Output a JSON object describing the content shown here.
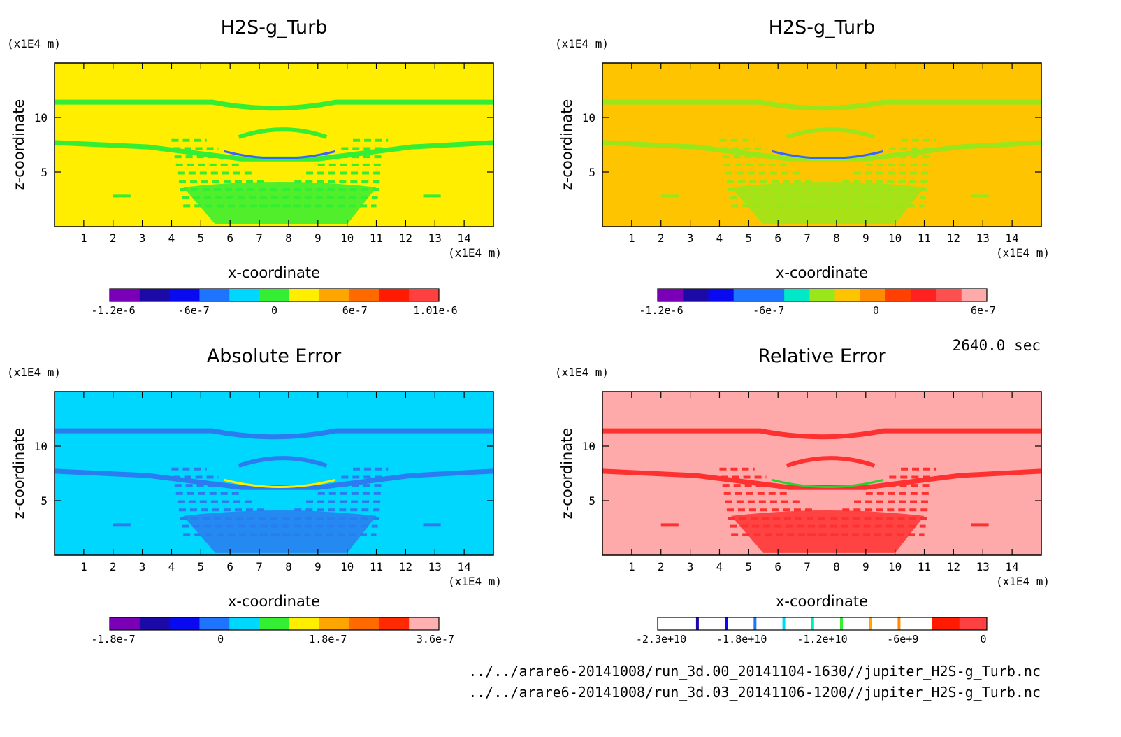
{
  "time_label": "2640.0 sec",
  "footer": {
    "file_1": "../../arare6-20141008/run_3d.00_20141104-1630//jupiter_H2S-g_Turb.nc",
    "file_2": "../../arare6-20141008/run_3d.03_20141106-1200//jupiter_H2S-g_Turb.nc"
  },
  "chart_data": [
    {
      "type": "heatmap",
      "title": "H2S-g_Turb",
      "xlabel": "x-coordinate",
      "ylabel": "z-coordinate",
      "x_unit": "(x1E4 m)",
      "y_unit": "(x1E4 m)",
      "xlim": [
        0,
        15
      ],
      "ylim": [
        0,
        15
      ],
      "xticks": [
        1,
        2,
        3,
        4,
        5,
        6,
        7,
        8,
        9,
        10,
        11,
        12,
        13,
        14
      ],
      "yticks": [
        5,
        10
      ],
      "background_color": "#ffee00",
      "feature_color": "#33ee33",
      "accent_color": "#3366ff",
      "colorbar": {
        "colors": [
          "#7a00b8",
          "#1c0aa6",
          "#0a0af0",
          "#1e74ff",
          "#00d7ff",
          "#33ee33",
          "#ffee00",
          "#ffa500",
          "#ff6a00",
          "#ff1a00",
          "#ff4040"
        ],
        "tick_labels": [
          "-1.2e-6",
          "-6e-7",
          "0",
          "6e-7",
          "1.01e-6"
        ]
      }
    },
    {
      "type": "heatmap",
      "title": "H2S-g_Turb",
      "xlabel": "x-coordinate",
      "ylabel": "z-coordinate",
      "x_unit": "(x1E4 m)",
      "y_unit": "(x1E4 m)",
      "xlim": [
        0,
        15
      ],
      "ylim": [
        0,
        15
      ],
      "xticks": [
        1,
        2,
        3,
        4,
        5,
        6,
        7,
        8,
        9,
        10,
        11,
        12,
        13,
        14
      ],
      "yticks": [
        5,
        10
      ],
      "background_color": "#ffc400",
      "feature_color": "#99e61a",
      "accent_color": "#3366ff",
      "colorbar": {
        "colors": [
          "#7a00b8",
          "#1c0aa6",
          "#0a0af0",
          "#1e74ff",
          "#1e74ff",
          "#00e8c8",
          "#99e61a",
          "#ffc400",
          "#ff8c00",
          "#ff4000",
          "#ff2020",
          "#ff5050",
          "#ffaaaa"
        ],
        "tick_labels": [
          "-1.2e-6",
          "-6e-7",
          "0",
          "6e-7"
        ]
      }
    },
    {
      "type": "heatmap",
      "title": "Absolute Error",
      "xlabel": "x-coordinate",
      "ylabel": "z-coordinate",
      "x_unit": "(x1E4 m)",
      "y_unit": "(x1E4 m)",
      "xlim": [
        0,
        15
      ],
      "ylim": [
        0,
        15
      ],
      "xticks": [
        1,
        2,
        3,
        4,
        5,
        6,
        7,
        8,
        9,
        10,
        11,
        12,
        13,
        14
      ],
      "yticks": [
        5,
        10
      ],
      "background_color": "#00d7ff",
      "feature_color": "#2a7cf0",
      "accent_color": "#ffee00",
      "colorbar": {
        "colors": [
          "#7a00b8",
          "#1c0aa6",
          "#0a0af0",
          "#1e74ff",
          "#00d7ff",
          "#33ee33",
          "#ffee00",
          "#ffa500",
          "#ff6a00",
          "#ff2a00",
          "#ffb0b0"
        ],
        "tick_labels": [
          "-1.8e-7",
          "0",
          "1.8e-7",
          "3.6e-7"
        ]
      }
    },
    {
      "type": "heatmap",
      "title": "Relative Error",
      "xlabel": "x-coordinate",
      "ylabel": "z-coordinate",
      "x_unit": "(x1E4 m)",
      "y_unit": "(x1E4 m)",
      "xlim": [
        0,
        15
      ],
      "ylim": [
        0,
        15
      ],
      "xticks": [
        1,
        2,
        3,
        4,
        5,
        6,
        7,
        8,
        9,
        10,
        11,
        12,
        13,
        14
      ],
      "yticks": [
        5,
        10
      ],
      "background_color": "#ffaaaa",
      "feature_color": "#ff3030",
      "accent_color": "#33cc33",
      "colorbar": {
        "colors": [
          "#ffffff",
          "#ffffff",
          "#ffffff",
          "#ffffff",
          "#ffffff",
          "#ffffff",
          "#ffffff",
          "#ffffff",
          "#ffffff",
          "#ffffff",
          "#ff1a00",
          "#ff4040"
        ],
        "segment_lines": [
          "#1c0aa6",
          "#0a0af0",
          "#1e74ff",
          "#00d7ff",
          "#00e8c8",
          "#33ee33",
          "#ffa500",
          "#ff8c00"
        ],
        "tick_labels": [
          "-2.3e+10",
          "-1.8e+10",
          "-1.2e+10",
          "-6e+9",
          "0"
        ]
      }
    }
  ]
}
